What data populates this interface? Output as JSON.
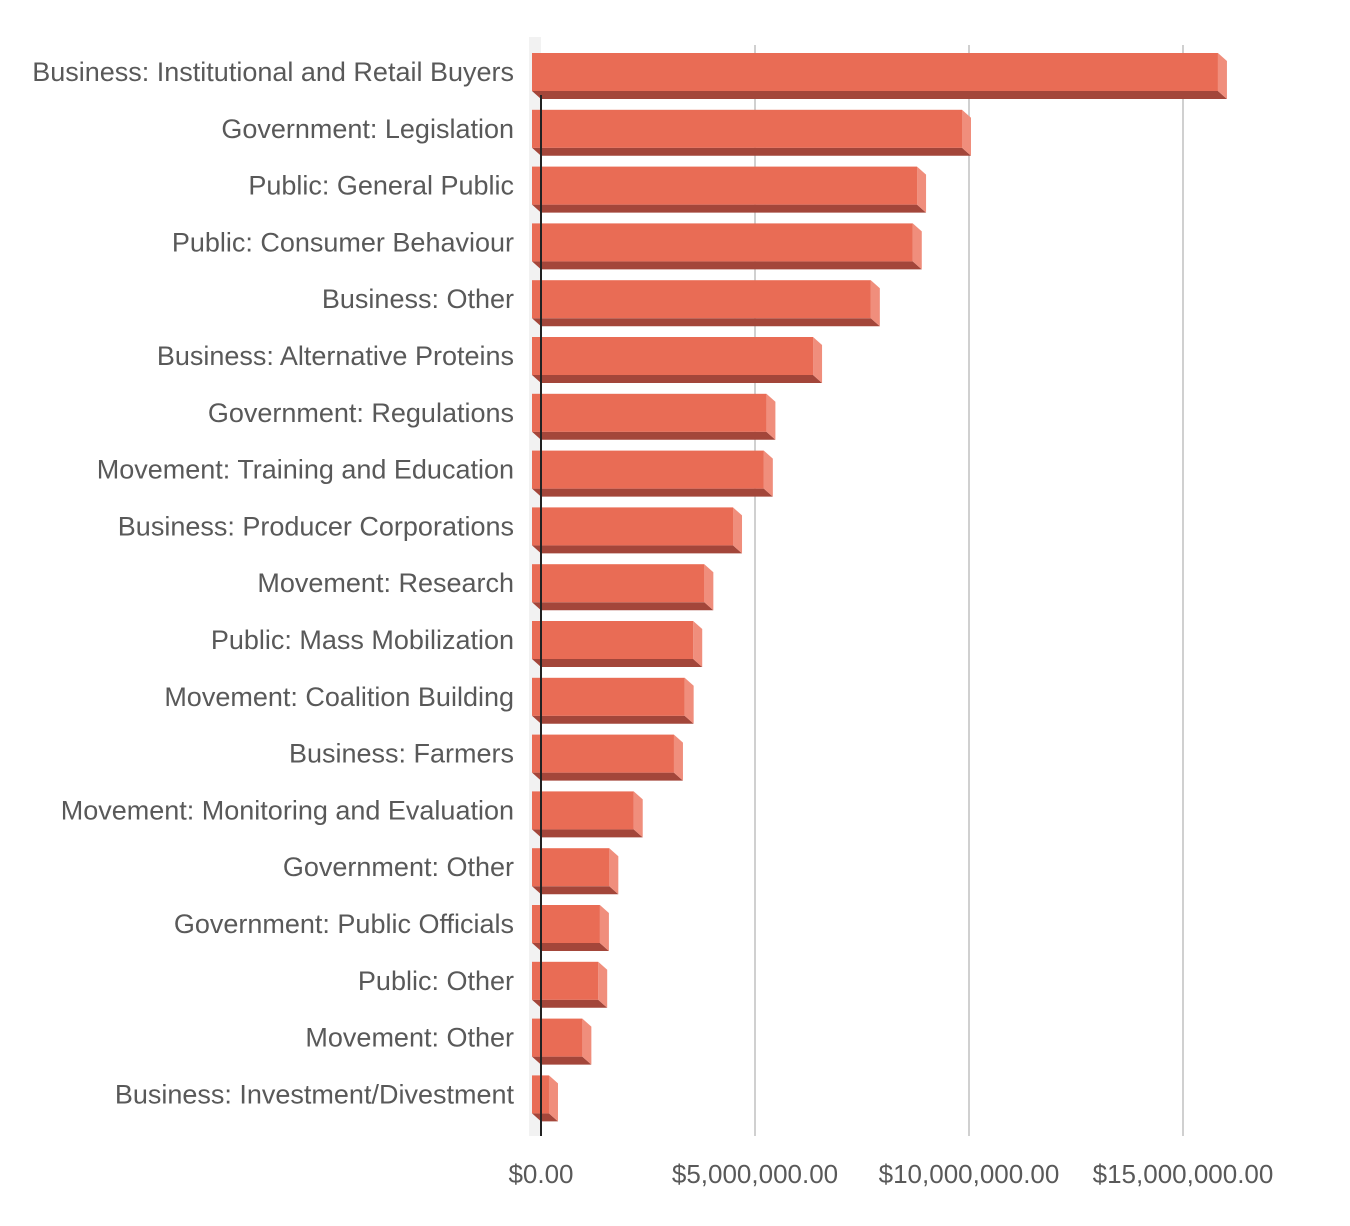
{
  "chart_data": {
    "type": "bar",
    "orientation": "horizontal",
    "style": "3d",
    "categories": [
      "Business: Institutional and Retail Buyers",
      "Government: Legislation",
      "Public: General Public",
      "Public: Consumer Behaviour",
      "Business: Other",
      "Business: Alternative Proteins",
      "Government: Regulations",
      "Movement: Training and Education",
      "Business: Producer Corporations",
      "Movement: Research",
      "Public: Mass Mobilization",
      "Movement: Coalition Building",
      "Business: Farmers",
      "Movement: Monitoring and Evaluation",
      "Government: Other",
      "Government: Public Officials",
      "Public: Other",
      "Movement: Other",
      "Business: Investment/Divestment"
    ],
    "values": [
      15980000,
      10000000,
      8950000,
      8850000,
      7870000,
      6520000,
      5430000,
      5370000,
      4650000,
      3980000,
      3720000,
      3520000,
      3270000,
      2330000,
      1760000,
      1540000,
      1500000,
      1130000,
      350000
    ],
    "xlim": [
      0,
      17000000
    ],
    "xticks": [
      0,
      5000000,
      10000000,
      15000000
    ],
    "xtick_labels": [
      "$0.00",
      "$5,000,000.00",
      "$10,000,000.00",
      "$15,000,000.00"
    ],
    "title": "",
    "xlabel": "",
    "ylabel": "",
    "grid": "vertical",
    "legend": "none",
    "colors": {
      "bar_front": "#e96c55",
      "bar_side": "#f08e7c",
      "bar_bottom": "#a3463a",
      "gridline": "#d0d0d0",
      "axis": "#222222",
      "text": "#595959"
    }
  }
}
